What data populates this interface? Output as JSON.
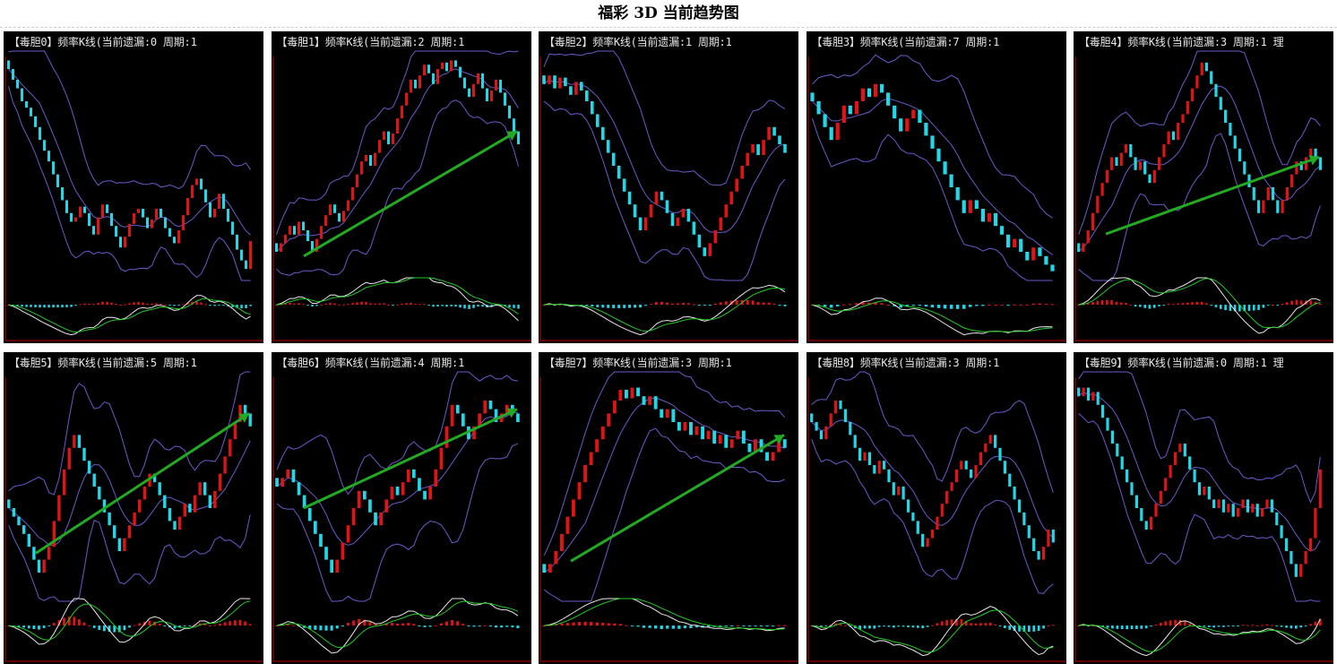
{
  "page": {
    "title": "福彩 3D 当前趋势图"
  },
  "colors": {
    "background": "#000000",
    "axis": "#c00000",
    "up_candle": "#e01414",
    "down_candle": "#22d8e8",
    "band": "#6a5acd",
    "trend_arrow": "#22aa22",
    "macd_dif": "#e8e8e8",
    "macd_dea": "#22cc22"
  },
  "chart_data": [
    {
      "type": "candlestick",
      "title": "【毒胆0】频率K线(当前遗漏:0 周期:1",
      "arrow": false,
      "closes": [
        95,
        90,
        86,
        80,
        77,
        73,
        68,
        62,
        57,
        52,
        46,
        40,
        34,
        28,
        24,
        26,
        31,
        28,
        22,
        18,
        26,
        32,
        28,
        22,
        17,
        12,
        17,
        23,
        28,
        30,
        26,
        21,
        25,
        30,
        26,
        21,
        17,
        14,
        20,
        27,
        35,
        41,
        44,
        39,
        33,
        26,
        30,
        37,
        30,
        24,
        18,
        11,
        6,
        2,
        15
      ]
    },
    {
      "type": "candlestick",
      "title": "【毒胆1】频率K线(当前遗漏:2 周期:1",
      "arrow": true,
      "closes": [
        10,
        14,
        18,
        22,
        18,
        24,
        20,
        15,
        10,
        16,
        22,
        27,
        32,
        28,
        24,
        29,
        34,
        40,
        46,
        52,
        55,
        50,
        56,
        62,
        66,
        60,
        65,
        72,
        78,
        84,
        90,
        86,
        92,
        97,
        93,
        88,
        95,
        98,
        94,
        99,
        96,
        91,
        86,
        82,
        88,
        93,
        86,
        80,
        85,
        90,
        84,
        78,
        72,
        66,
        60
      ]
    },
    {
      "type": "candlestick",
      "title": "【毒胆2】频率K线(当前遗漏:1 周期:1",
      "arrow": false,
      "closes": [
        88,
        92,
        86,
        91,
        87,
        83,
        89,
        85,
        80,
        74,
        68,
        62,
        56,
        50,
        44,
        38,
        32,
        26,
        20,
        26,
        32,
        38,
        34,
        28,
        22,
        26,
        30,
        24,
        18,
        12,
        8,
        14,
        20,
        26,
        32,
        38,
        44,
        50,
        56,
        60,
        55,
        62,
        68,
        64,
        60,
        56
      ]
    },
    {
      "type": "candlestick",
      "title": "【毒胆3】频率K线(当前遗漏:7 周期:1",
      "arrow": false,
      "closes": [
        80,
        74,
        68,
        62,
        70,
        78,
        74,
        80,
        86,
        82,
        88,
        84,
        78,
        72,
        66,
        72,
        76,
        70,
        64,
        58,
        52,
        46,
        40,
        34,
        28,
        34,
        30,
        24,
        28,
        22,
        18,
        12,
        16,
        10,
        6,
        12,
        8,
        4,
        1
      ]
    },
    {
      "type": "candlestick",
      "title": "【毒胆4】频率K线(当前遗漏:3 周期:1 理",
      "arrow": true,
      "closes": [
        10,
        14,
        20,
        28,
        36,
        42,
        48,
        54,
        50,
        56,
        60,
        54,
        48,
        52,
        46,
        42,
        48,
        54,
        60,
        66,
        62,
        70,
        74,
        80,
        86,
        92,
        98,
        94,
        88,
        82,
        76,
        70,
        64,
        58,
        52,
        46,
        40,
        34,
        28,
        34,
        40,
        34,
        28,
        34,
        40,
        46,
        52,
        48,
        54,
        58,
        54,
        48
      ]
    },
    {
      "type": "candlestick",
      "title": "【毒胆5】频率K线(当前遗漏:5 周期:1",
      "arrow": true,
      "closes": [
        40,
        36,
        32,
        28,
        22,
        16,
        10,
        16,
        22,
        34,
        46,
        58,
        68,
        74,
        68,
        62,
        56,
        50,
        44,
        38,
        32,
        26,
        20,
        26,
        32,
        38,
        44,
        50,
        56,
        52,
        46,
        40,
        34,
        30,
        36,
        42,
        38,
        46,
        52,
        46,
        40,
        48,
        56,
        64,
        72,
        80,
        88,
        84,
        78
      ]
    },
    {
      "type": "candlestick",
      "title": "【毒胆6】频率K线(当前遗漏:4 周期:1",
      "arrow": true,
      "closes": [
        50,
        54,
        58,
        52,
        46,
        40,
        34,
        28,
        22,
        16,
        10,
        16,
        24,
        32,
        40,
        48,
        44,
        38,
        32,
        38,
        44,
        50,
        46,
        52,
        58,
        54,
        48,
        44,
        50,
        58,
        68,
        78,
        88,
        84,
        78,
        72,
        78,
        84,
        90,
        86,
        80,
        84,
        88,
        84,
        80
      ]
    },
    {
      "type": "candlestick",
      "title": "【毒胆7】频率K线(当前遗漏:3 周期:1",
      "arrow": true,
      "closes": [
        10,
        14,
        20,
        28,
        36,
        44,
        52,
        60,
        66,
        72,
        78,
        84,
        90,
        95,
        91,
        96,
        92,
        88,
        92,
        86,
        82,
        86,
        80,
        76,
        80,
        74,
        78,
        72,
        76,
        70,
        74,
        68,
        72,
        76,
        70,
        66,
        72,
        66,
        62,
        66,
        72,
        68
      ]
    },
    {
      "type": "candlestick",
      "title": "【毒胆8】频率K线(当前遗漏:3 周期:1",
      "arrow": false,
      "closes": [
        80,
        76,
        72,
        78,
        84,
        90,
        86,
        80,
        74,
        68,
        62,
        66,
        60,
        56,
        62,
        58,
        52,
        46,
        50,
        44,
        38,
        34,
        28,
        22,
        26,
        30,
        36,
        42,
        48,
        52,
        58,
        62,
        58,
        54,
        60,
        66,
        70,
        74,
        68,
        62,
        56,
        50,
        44,
        38,
        32,
        26,
        20,
        16,
        22,
        30,
        24
      ]
    },
    {
      "type": "candlestick",
      "title": "【毒胆9】频率K线(当前遗漏:0 周期:1 理",
      "arrow": false,
      "closes": [
        92,
        96,
        90,
        94,
        88,
        82,
        76,
        70,
        64,
        58,
        52,
        46,
        40,
        34,
        30,
        36,
        42,
        48,
        54,
        60,
        66,
        70,
        64,
        58,
        52,
        46,
        50,
        44,
        40,
        44,
        38,
        42,
        36,
        40,
        44,
        38,
        42,
        36,
        40,
        44,
        38,
        32,
        26,
        20,
        14,
        8,
        14,
        20,
        26,
        40,
        58
      ]
    }
  ]
}
